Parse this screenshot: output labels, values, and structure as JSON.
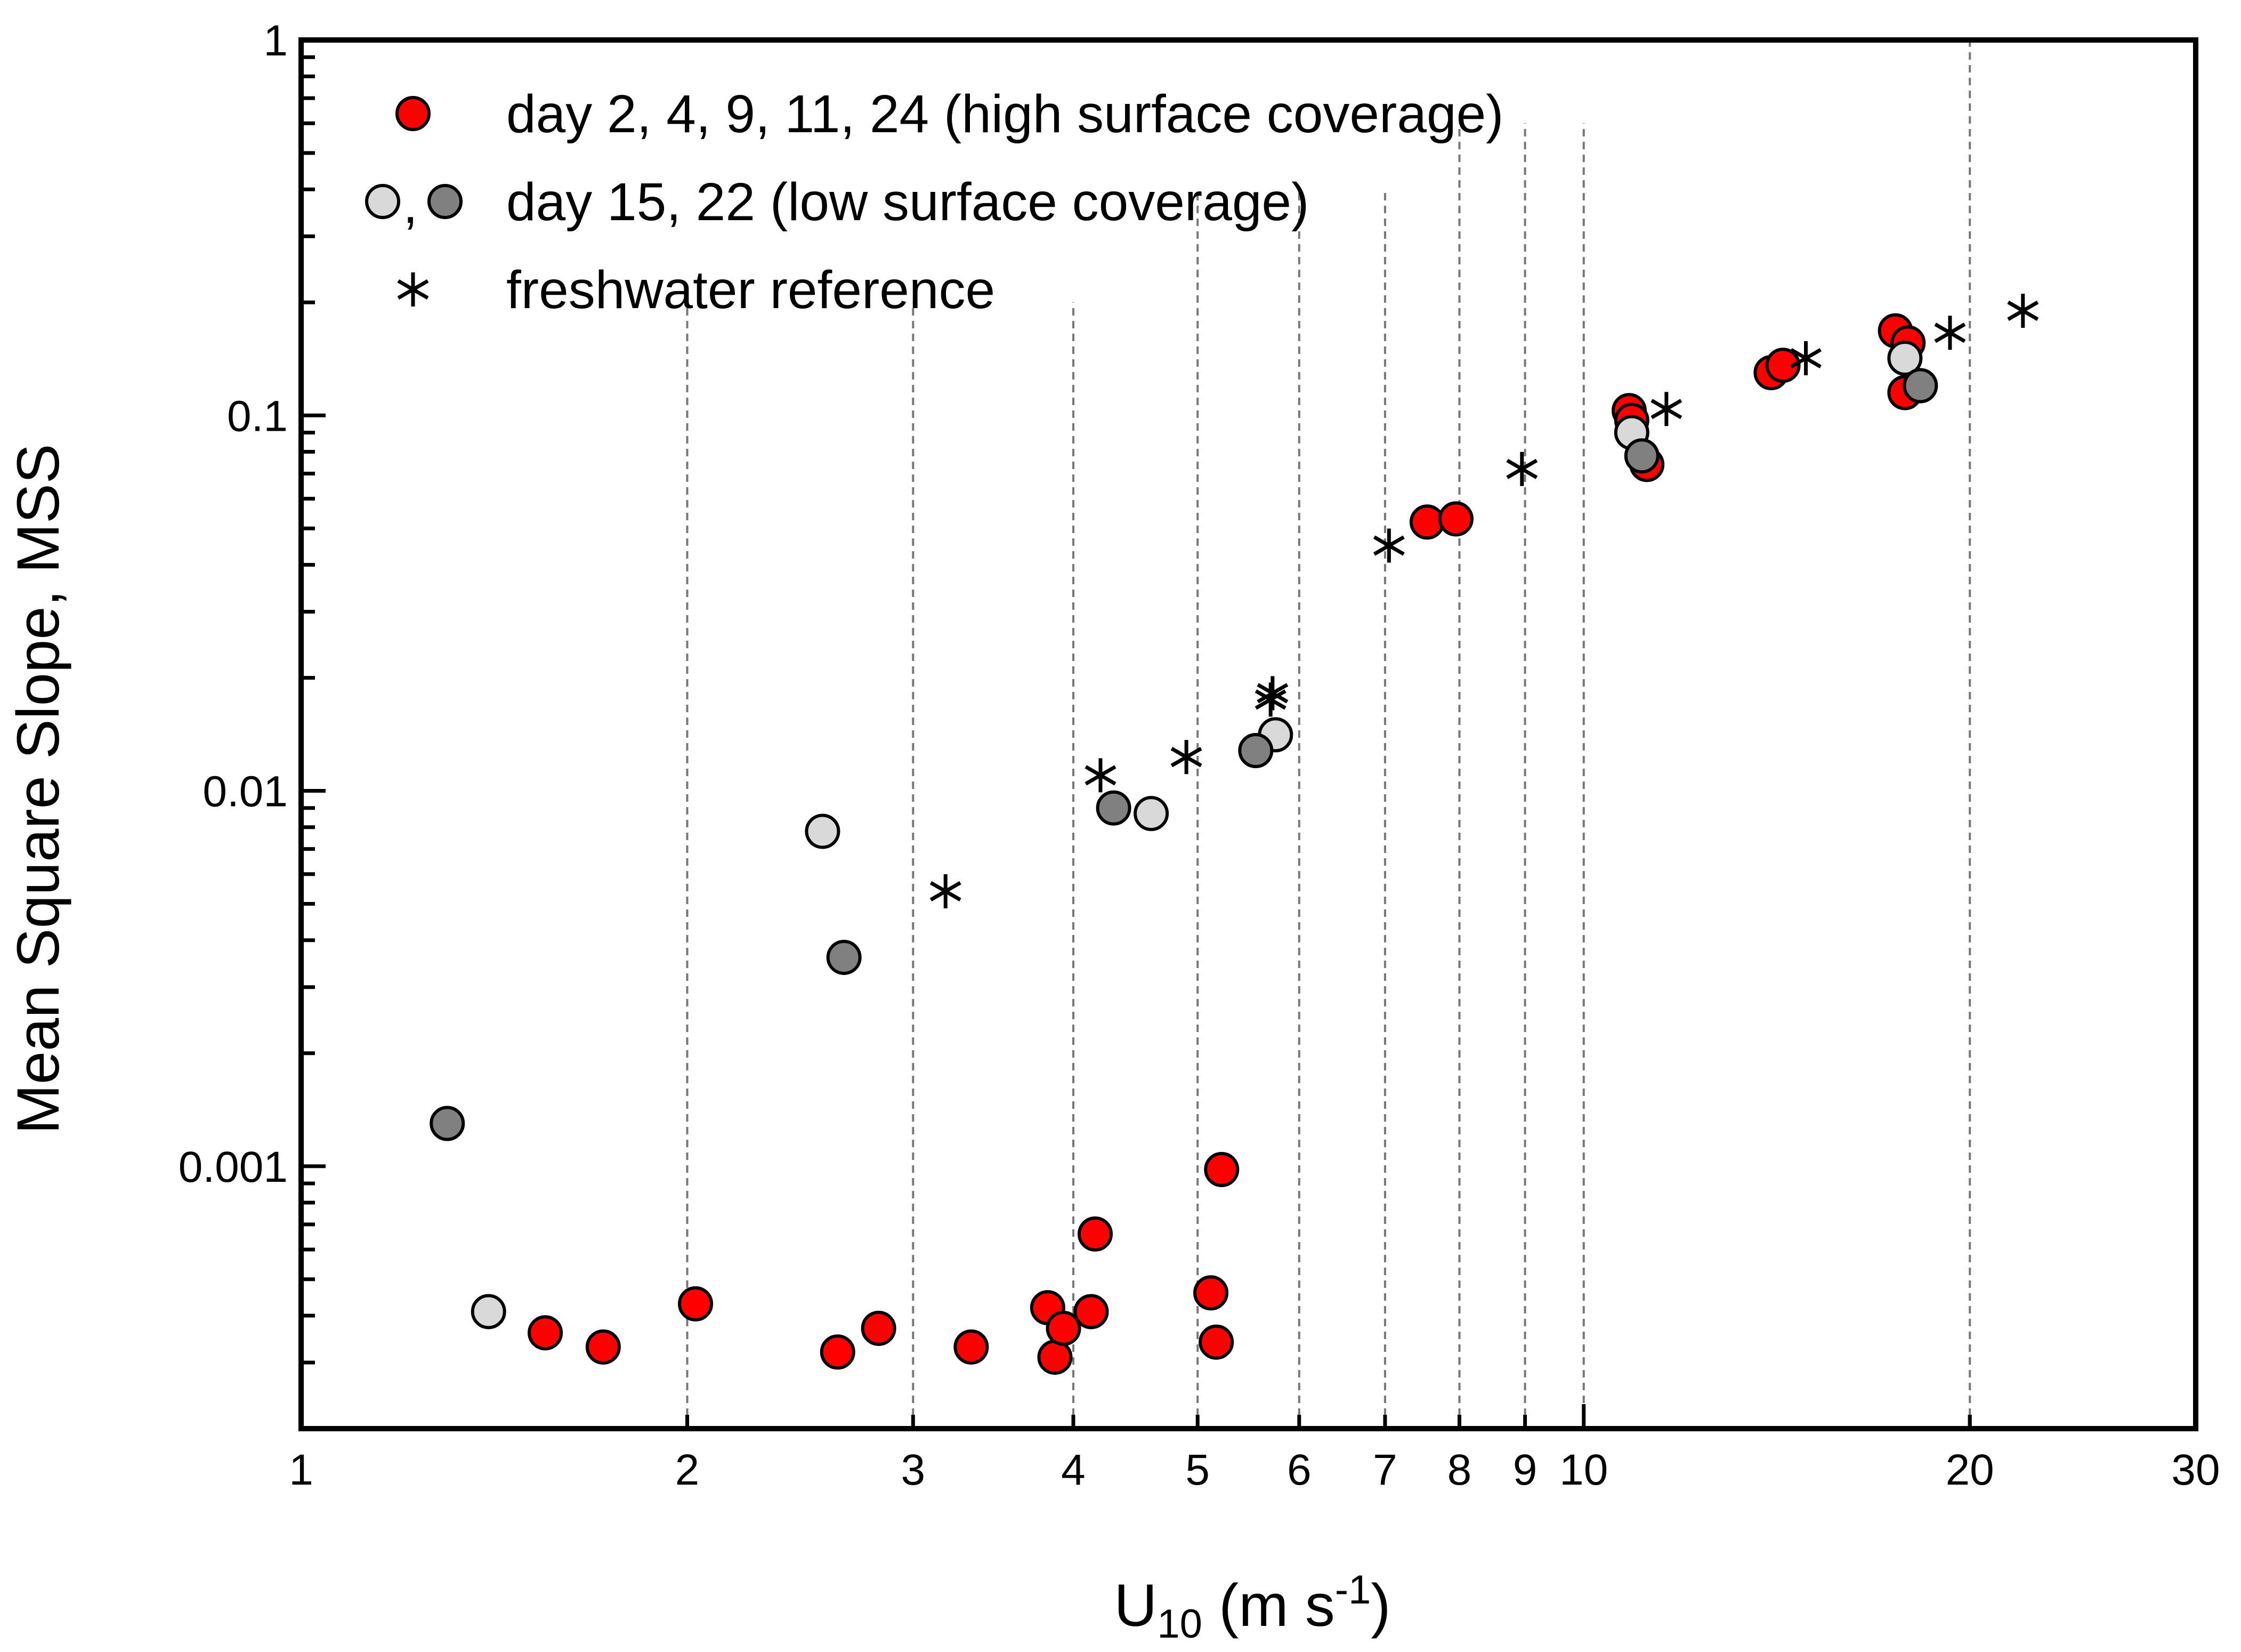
{
  "chart_data": {
    "type": "scatter",
    "xlabel_main": "U",
    "xlabel_sub": "10",
    "xlabel_unit_pre": " (m s",
    "xlabel_unit_sup": "-1",
    "xlabel_unit_post": ")",
    "ylabel": "Mean Square Slope, MSS",
    "xscale": "log",
    "yscale": "log",
    "xlim": [
      1,
      30
    ],
    "ylim": [
      0.0002,
      1
    ],
    "x_tick_labels": [
      {
        "value": 1,
        "label": "1"
      },
      {
        "value": 2,
        "label": "2"
      },
      {
        "value": 3,
        "label": "3"
      },
      {
        "value": 4,
        "label": "4"
      },
      {
        "value": 5,
        "label": "5"
      },
      {
        "value": 6,
        "label": "6"
      },
      {
        "value": 7,
        "label": "7"
      },
      {
        "value": 8,
        "label": "8"
      },
      {
        "value": 9,
        "label": "9"
      },
      {
        "value": 10,
        "label": "10"
      },
      {
        "value": 20,
        "label": "20"
      },
      {
        "value": 30,
        "label": "30"
      }
    ],
    "y_tick_labels": [
      {
        "value": 0.001,
        "label": "0.001"
      },
      {
        "value": 0.01,
        "label": "0.01"
      },
      {
        "value": 0.1,
        "label": "0.1"
      },
      {
        "value": 1,
        "label": "1"
      }
    ],
    "gridlines": [
      {
        "x": 2,
        "y_top": 0.2
      },
      {
        "x": 3,
        "y_top": 0.2
      },
      {
        "x": 4,
        "y_top": 0.2
      },
      {
        "x": 5,
        "y_top": 0.4
      },
      {
        "x": 6,
        "y_top": 0.4
      },
      {
        "x": 7,
        "y_top": 0.4
      },
      {
        "x": 8,
        "y_top": 0.6
      },
      {
        "x": 9,
        "y_top": 0.6
      },
      {
        "x": 10,
        "y_top": 0.6
      },
      {
        "x": 20,
        "y_top": 1
      }
    ],
    "legend_position": "top-left",
    "series": [
      {
        "name": "day 2, 4, 9, 11, 24 (high surface coverage)",
        "marker": "circle",
        "fill": "#ff0000",
        "points": [
          {
            "x": 1.55,
            "y": 0.00036
          },
          {
            "x": 1.72,
            "y": 0.00033
          },
          {
            "x": 2.03,
            "y": 0.00043
          },
          {
            "x": 2.62,
            "y": 0.00032
          },
          {
            "x": 2.82,
            "y": 0.00037
          },
          {
            "x": 3.33,
            "y": 0.00033
          },
          {
            "x": 3.82,
            "y": 0.00042
          },
          {
            "x": 3.87,
            "y": 0.00031
          },
          {
            "x": 3.93,
            "y": 0.00037
          },
          {
            "x": 4.13,
            "y": 0.00041
          },
          {
            "x": 4.16,
            "y": 0.00066
          },
          {
            "x": 5.12,
            "y": 0.00046
          },
          {
            "x": 5.17,
            "y": 0.00034
          },
          {
            "x": 5.22,
            "y": 0.00098
          },
          {
            "x": 7.55,
            "y": 0.052
          },
          {
            "x": 7.95,
            "y": 0.053
          },
          {
            "x": 10.85,
            "y": 0.103
          },
          {
            "x": 10.9,
            "y": 0.097
          },
          {
            "x": 11.2,
            "y": 0.074
          },
          {
            "x": 14.0,
            "y": 0.13
          },
          {
            "x": 14.3,
            "y": 0.136
          },
          {
            "x": 17.5,
            "y": 0.168
          },
          {
            "x": 17.9,
            "y": 0.156
          },
          {
            "x": 17.8,
            "y": 0.115
          }
        ]
      },
      {
        "name": "day 15, 22 (low surface coverage)",
        "marker": "circle",
        "fill": "#d9d9d9",
        "points": [
          {
            "x": 1.4,
            "y": 0.00041
          },
          {
            "x": 2.55,
            "y": 0.0078
          },
          {
            "x": 4.6,
            "y": 0.0087
          },
          {
            "x": 5.75,
            "y": 0.0141
          },
          {
            "x": 10.9,
            "y": 0.09
          },
          {
            "x": 17.8,
            "y": 0.142
          }
        ]
      },
      {
        "name": "",
        "marker": "circle",
        "fill": "#808080",
        "points": [
          {
            "x": 1.3,
            "y": 0.0013
          },
          {
            "x": 2.65,
            "y": 0.0036
          },
          {
            "x": 4.3,
            "y": 0.009
          },
          {
            "x": 5.55,
            "y": 0.0128
          },
          {
            "x": 11.1,
            "y": 0.078
          },
          {
            "x": 18.3,
            "y": 0.12
          }
        ]
      },
      {
        "name": "freshwater reference",
        "marker": "asterisk",
        "fill": "#000000",
        "points": [
          {
            "x": 3.18,
            "y": 0.0054
          },
          {
            "x": 4.2,
            "y": 0.011
          },
          {
            "x": 4.9,
            "y": 0.0123
          },
          {
            "x": 5.7,
            "y": 0.0175
          },
          {
            "x": 5.72,
            "y": 0.0182
          },
          {
            "x": 7.05,
            "y": 0.045
          },
          {
            "x": 8.95,
            "y": 0.072
          },
          {
            "x": 11.6,
            "y": 0.104
          },
          {
            "x": 14.9,
            "y": 0.142
          },
          {
            "x": 19.3,
            "y": 0.166
          },
          {
            "x": 22.0,
            "y": 0.19
          }
        ]
      }
    ],
    "legend": [
      {
        "markers": [
          "#ff0000"
        ],
        "separator": "",
        "label": "day 2, 4, 9, 11, 24 (high surface coverage)"
      },
      {
        "markers": [
          "#d9d9d9",
          "#808080"
        ],
        "separator": ",",
        "label": "day 15, 22 (low surface coverage)"
      },
      {
        "markers": [
          "asterisk"
        ],
        "separator": "",
        "label": "freshwater reference"
      }
    ]
  }
}
